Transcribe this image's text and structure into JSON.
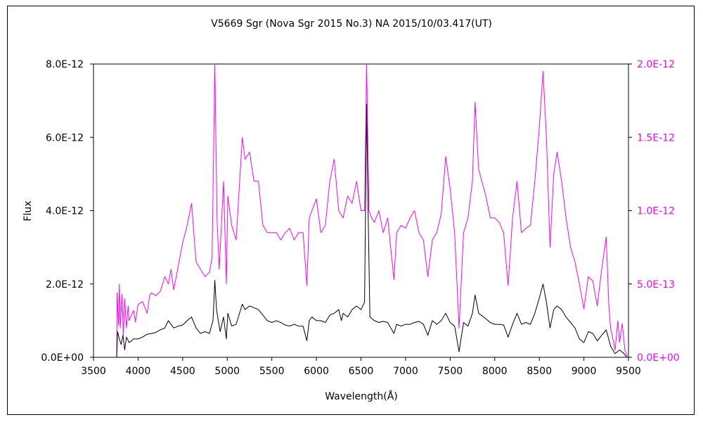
{
  "chart_data": {
    "type": "line",
    "title": "V5669 Sgr (Nova Sgr 2015 No.3)    NA    2015/10/03.417(UT)",
    "xlabel": "Wavelength(Å)",
    "ylabel": "Flux",
    "xlim": [
      3500,
      9500
    ],
    "ylim": [
      0,
      8e-12
    ],
    "y2lim": [
      0,
      2e-12
    ],
    "x_ticks": [
      "3500",
      "4000",
      "4500",
      "5000",
      "5500",
      "6000",
      "6500",
      "7000",
      "7500",
      "8000",
      "8500",
      "9000",
      "9500"
    ],
    "y_ticks": [
      "0.0E+00",
      "2.0E-12",
      "4.0E-12",
      "6.0E-12",
      "8.0E-12"
    ],
    "y2_ticks": [
      "0.0E+00",
      "5.0E-13",
      "1.0E-12",
      "1.5E-12",
      "2.0E-12"
    ],
    "grid": false,
    "series": [
      {
        "axis": "left",
        "color": "#000000",
        "points": [
          [
            3760,
            0.0
          ],
          [
            3770,
            7e-13
          ],
          [
            3790,
            5e-13
          ],
          [
            3810,
            3.5e-13
          ],
          [
            3830,
            6e-13
          ],
          [
            3850,
            2e-13
          ],
          [
            3870,
            5.5e-13
          ],
          [
            3900,
            4e-13
          ],
          [
            3950,
            5e-13
          ],
          [
            4000,
            5e-13
          ],
          [
            4050,
            5.5e-13
          ],
          [
            4100,
            6.3e-13
          ],
          [
            4150,
            6.5e-13
          ],
          [
            4200,
            6.8e-13
          ],
          [
            4250,
            7.5e-13
          ],
          [
            4300,
            8e-13
          ],
          [
            4340,
            1e-12
          ],
          [
            4400,
            8e-13
          ],
          [
            4450,
            8.5e-13
          ],
          [
            4500,
            8.8e-13
          ],
          [
            4550,
            1e-12
          ],
          [
            4600,
            1.1e-12
          ],
          [
            4650,
            8e-13
          ],
          [
            4700,
            6.5e-13
          ],
          [
            4750,
            7e-13
          ],
          [
            4800,
            6.5e-13
          ],
          [
            4840,
            1e-12
          ],
          [
            4861,
            2.1e-12
          ],
          [
            4880,
            1.3e-12
          ],
          [
            4920,
            7e-13
          ],
          [
            4959,
            1.1e-12
          ],
          [
            4990,
            5e-13
          ],
          [
            5007,
            1.2e-12
          ],
          [
            5050,
            8.5e-13
          ],
          [
            5100,
            9e-13
          ],
          [
            5169,
            1.45e-12
          ],
          [
            5200,
            1.3e-12
          ],
          [
            5250,
            1.4e-12
          ],
          [
            5300,
            1.35e-12
          ],
          [
            5350,
            1.3e-12
          ],
          [
            5400,
            1.15e-12
          ],
          [
            5450,
            1e-12
          ],
          [
            5500,
            9.5e-13
          ],
          [
            5550,
            1e-12
          ],
          [
            5600,
            9.5e-13
          ],
          [
            5650,
            8.8e-13
          ],
          [
            5700,
            8.5e-13
          ],
          [
            5750,
            9e-13
          ],
          [
            5800,
            8.5e-13
          ],
          [
            5850,
            8.5e-13
          ],
          [
            5893,
            4.5e-13
          ],
          [
            5920,
            1e-12
          ],
          [
            5950,
            1.1e-12
          ],
          [
            6000,
            1e-12
          ],
          [
            6050,
            1e-12
          ],
          [
            6100,
            9.5e-13
          ],
          [
            6150,
            1.15e-12
          ],
          [
            6200,
            1.2e-12
          ],
          [
            6250,
            1.3e-12
          ],
          [
            6280,
            1e-12
          ],
          [
            6300,
            1.2e-12
          ],
          [
            6350,
            1.1e-12
          ],
          [
            6400,
            1.3e-12
          ],
          [
            6450,
            1.4e-12
          ],
          [
            6500,
            1.3e-12
          ],
          [
            6540,
            1.5e-12
          ],
          [
            6563,
            6.9e-12
          ],
          [
            6580,
            4e-12
          ],
          [
            6600,
            1.1e-12
          ],
          [
            6650,
            1e-12
          ],
          [
            6700,
            9.5e-13
          ],
          [
            6750,
            9.8e-13
          ],
          [
            6800,
            9.5e-13
          ],
          [
            6870,
            6.5e-13
          ],
          [
            6900,
            9e-13
          ],
          [
            6950,
            8.5e-13
          ],
          [
            7000,
            9e-13
          ],
          [
            7050,
            9e-13
          ],
          [
            7100,
            9.5e-13
          ],
          [
            7150,
            9.8e-13
          ],
          [
            7200,
            9e-13
          ],
          [
            7250,
            6e-13
          ],
          [
            7300,
            1e-12
          ],
          [
            7350,
            9e-13
          ],
          [
            7400,
            1e-12
          ],
          [
            7450,
            1.2e-12
          ],
          [
            7500,
            9.5e-13
          ],
          [
            7550,
            8.5e-13
          ],
          [
            7600,
            1.5e-13
          ],
          [
            7650,
            9.5e-13
          ],
          [
            7700,
            8.5e-13
          ],
          [
            7750,
            1.2e-12
          ],
          [
            7780,
            1.7e-12
          ],
          [
            7820,
            1.2e-12
          ],
          [
            7900,
            1.05e-12
          ],
          [
            7950,
            9.5e-13
          ],
          [
            8000,
            9e-13
          ],
          [
            8050,
            9e-13
          ],
          [
            8100,
            8.8e-13
          ],
          [
            8150,
            5.5e-13
          ],
          [
            8200,
            9e-13
          ],
          [
            8250,
            1.2e-12
          ],
          [
            8300,
            9e-13
          ],
          [
            8350,
            9.5e-13
          ],
          [
            8400,
            9e-13
          ],
          [
            8450,
            1.2e-12
          ],
          [
            8498,
            1.6e-12
          ],
          [
            8542,
            2e-12
          ],
          [
            8580,
            1.5e-12
          ],
          [
            8620,
            8e-13
          ],
          [
            8662,
            1.3e-12
          ],
          [
            8700,
            1.4e-12
          ],
          [
            8750,
            1.3e-12
          ],
          [
            8800,
            1.1e-12
          ],
          [
            8850,
            9.5e-13
          ],
          [
            8900,
            8e-13
          ],
          [
            8950,
            5e-13
          ],
          [
            9000,
            4e-13
          ],
          [
            9050,
            7e-13
          ],
          [
            9100,
            6.5e-13
          ],
          [
            9150,
            4.5e-13
          ],
          [
            9200,
            6e-13
          ],
          [
            9250,
            7.5e-13
          ],
          [
            9300,
            3e-13
          ],
          [
            9350,
            1e-13
          ],
          [
            9400,
            2e-13
          ],
          [
            9450,
            1e-13
          ],
          [
            9480,
            0.0
          ]
        ]
      },
      {
        "axis": "right",
        "color": "#ff00ff",
        "points": [
          [
            3760,
            0.0
          ],
          [
            3765,
            4.4e-13
          ],
          [
            3780,
            2.2e-13
          ],
          [
            3790,
            5e-13
          ],
          [
            3800,
            2e-13
          ],
          [
            3820,
            4.3e-13
          ],
          [
            3835,
            1.5e-13
          ],
          [
            3850,
            4e-13
          ],
          [
            3870,
            2e-13
          ],
          [
            3889,
            3.5e-13
          ],
          [
            3900,
            2.5e-13
          ],
          [
            3950,
            3.2e-13
          ],
          [
            3970,
            2.4e-13
          ],
          [
            4000,
            3.6e-13
          ],
          [
            4050,
            3.8e-13
          ],
          [
            4101,
            3e-13
          ],
          [
            4130,
            4.2e-13
          ],
          [
            4150,
            4.4e-13
          ],
          [
            4200,
            4.2e-13
          ],
          [
            4250,
            4.5e-13
          ],
          [
            4300,
            5.5e-13
          ],
          [
            4340,
            5e-13
          ],
          [
            4370,
            6e-13
          ],
          [
            4400,
            4.6e-13
          ],
          [
            4450,
            6.2e-13
          ],
          [
            4500,
            7.8e-13
          ],
          [
            4550,
            9e-13
          ],
          [
            4600,
            1.05e-12
          ],
          [
            4650,
            6.5e-13
          ],
          [
            4700,
            6e-13
          ],
          [
            4750,
            5.5e-13
          ],
          [
            4800,
            5.8e-13
          ],
          [
            4830,
            6.8e-13
          ],
          [
            4861,
            2e-12
          ],
          [
            4885,
            9.5e-13
          ],
          [
            4910,
            6e-13
          ],
          [
            4959,
            1.2e-12
          ],
          [
            4990,
            5e-13
          ],
          [
            5007,
            1.1e-12
          ],
          [
            5050,
            9e-13
          ],
          [
            5100,
            8e-13
          ],
          [
            5169,
            1.5e-12
          ],
          [
            5200,
            1.35e-12
          ],
          [
            5250,
            1.4e-12
          ],
          [
            5300,
            1.2e-12
          ],
          [
            5350,
            1.2e-12
          ],
          [
            5400,
            9e-13
          ],
          [
            5450,
            8.5e-13
          ],
          [
            5500,
            8.5e-13
          ],
          [
            5550,
            8.5e-13
          ],
          [
            5600,
            8e-13
          ],
          [
            5650,
            8.5e-13
          ],
          [
            5700,
            8.8e-13
          ],
          [
            5750,
            8e-13
          ],
          [
            5800,
            8.5e-13
          ],
          [
            5850,
            8.5e-13
          ],
          [
            5893,
            4.9e-13
          ],
          [
            5920,
            9.5e-13
          ],
          [
            5950,
            1e-12
          ],
          [
            6000,
            1.08e-12
          ],
          [
            6050,
            8.5e-13
          ],
          [
            6100,
            9e-13
          ],
          [
            6150,
            1.2e-12
          ],
          [
            6200,
            1.35e-12
          ],
          [
            6250,
            1e-12
          ],
          [
            6300,
            9.5e-13
          ],
          [
            6350,
            1.1e-12
          ],
          [
            6400,
            1.05e-12
          ],
          [
            6450,
            1.2e-12
          ],
          [
            6500,
            1e-12
          ],
          [
            6540,
            1e-12
          ],
          [
            6563,
            2e-12
          ],
          [
            6590,
            1e-12
          ],
          [
            6620,
            9.5e-13
          ],
          [
            6650,
            9.2e-13
          ],
          [
            6700,
            1e-12
          ],
          [
            6750,
            8.5e-13
          ],
          [
            6800,
            9.5e-13
          ],
          [
            6870,
            5.3e-13
          ],
          [
            6900,
            8.5e-13
          ],
          [
            6950,
            9e-13
          ],
          [
            7000,
            8.8e-13
          ],
          [
            7050,
            9.5e-13
          ],
          [
            7100,
            1e-12
          ],
          [
            7150,
            8.5e-13
          ],
          [
            7200,
            8e-13
          ],
          [
            7250,
            5.5e-13
          ],
          [
            7300,
            8e-13
          ],
          [
            7350,
            8.5e-13
          ],
          [
            7400,
            9.8e-13
          ],
          [
            7450,
            1.37e-12
          ],
          [
            7500,
            1.15e-12
          ],
          [
            7550,
            8.5e-13
          ],
          [
            7600,
            2e-13
          ],
          [
            7650,
            8.5e-13
          ],
          [
            7700,
            9.5e-13
          ],
          [
            7750,
            1.2e-12
          ],
          [
            7780,
            1.74e-12
          ],
          [
            7820,
            1.28e-12
          ],
          [
            7900,
            1.1e-12
          ],
          [
            7950,
            9.5e-13
          ],
          [
            8000,
            9.5e-13
          ],
          [
            8050,
            9.2e-13
          ],
          [
            8100,
            8.5e-13
          ],
          [
            8150,
            4.9e-13
          ],
          [
            8200,
            9.5e-13
          ],
          [
            8250,
            1.2e-12
          ],
          [
            8300,
            8.5e-13
          ],
          [
            8350,
            8.8e-13
          ],
          [
            8400,
            9e-13
          ],
          [
            8450,
            1.2e-12
          ],
          [
            8498,
            1.55e-12
          ],
          [
            8542,
            1.95e-12
          ],
          [
            8580,
            1.5e-12
          ],
          [
            8620,
            7.5e-13
          ],
          [
            8662,
            1.25e-12
          ],
          [
            8700,
            1.4e-12
          ],
          [
            8750,
            1.2e-12
          ],
          [
            8800,
            9.5e-13
          ],
          [
            8850,
            7.5e-13
          ],
          [
            8900,
            6.5e-13
          ],
          [
            8950,
            5e-13
          ],
          [
            9000,
            3.3e-13
          ],
          [
            9050,
            5.5e-13
          ],
          [
            9100,
            5.2e-13
          ],
          [
            9150,
            3.5e-13
          ],
          [
            9200,
            6e-13
          ],
          [
            9250,
            8.2e-13
          ],
          [
            9280,
            3.5e-13
          ],
          [
            9300,
            2e-13
          ],
          [
            9350,
            5e-14
          ],
          [
            9380,
            2.5e-13
          ],
          [
            9400,
            1e-13
          ],
          [
            9430,
            2.3e-13
          ],
          [
            9460,
            5e-14
          ],
          [
            9490,
            0.0
          ]
        ]
      }
    ]
  }
}
